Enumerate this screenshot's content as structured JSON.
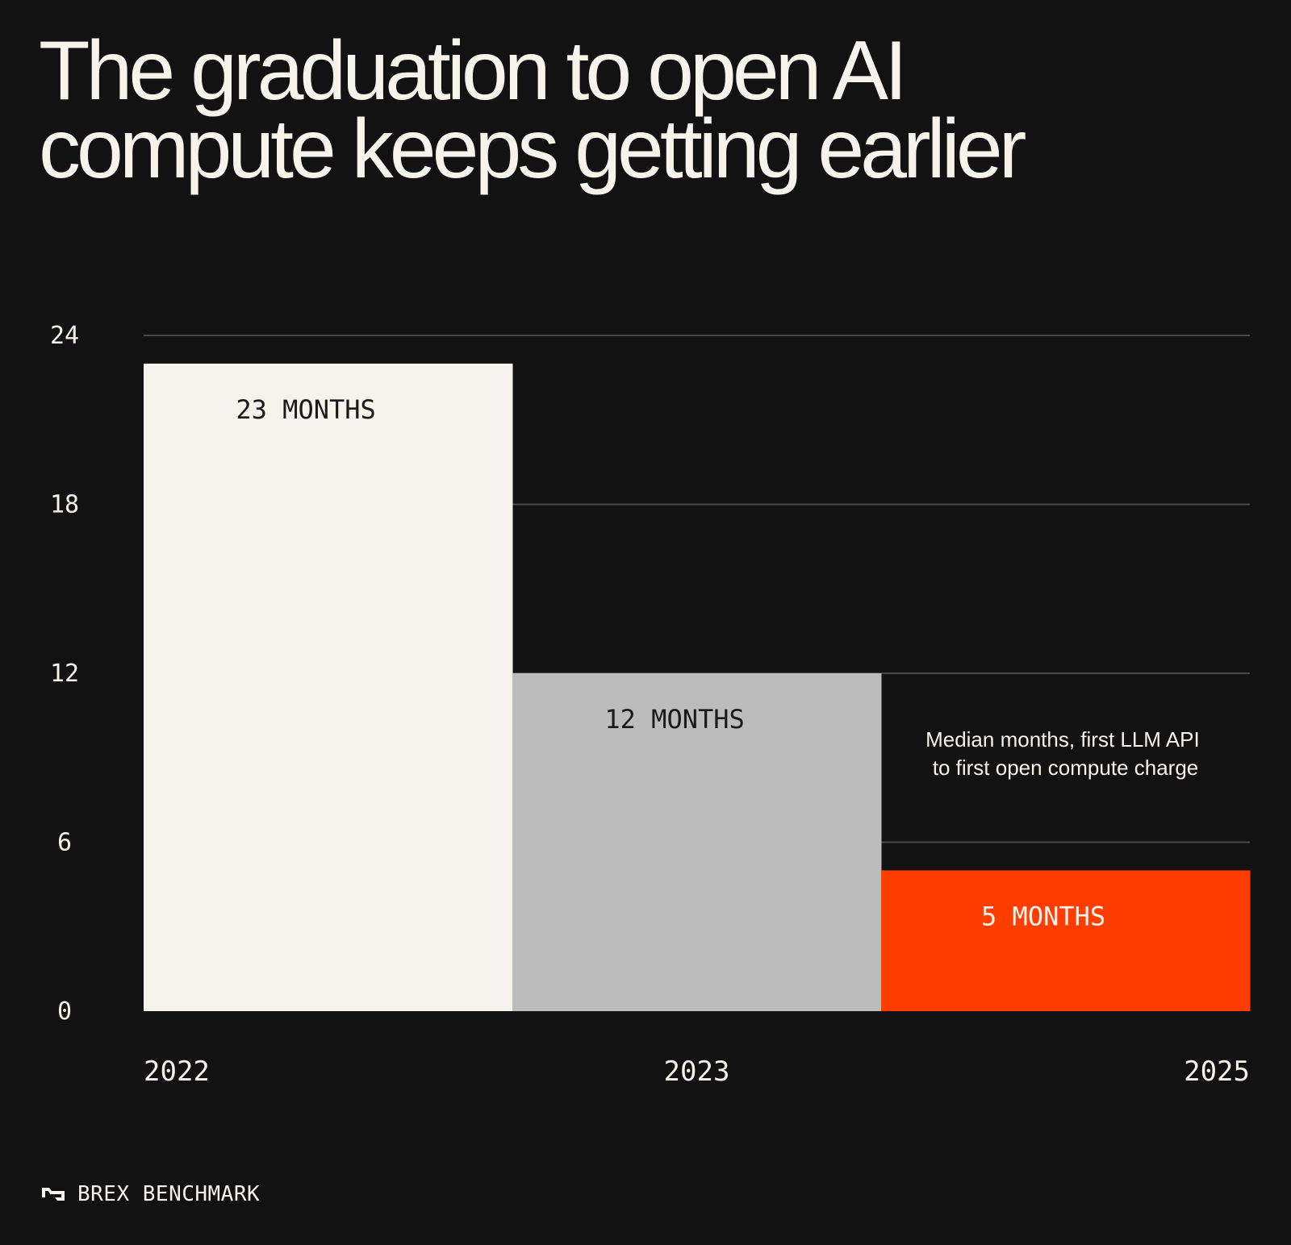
{
  "chart_data": {
    "type": "bar",
    "title_lines": [
      "The graduation to open AI",
      "compute keeps getting earlier"
    ],
    "categories": [
      "2022",
      "2023",
      "2025"
    ],
    "values": [
      23,
      12,
      5
    ],
    "value_labels": [
      "23 MONTHS",
      "12 MONTHS",
      "5 MONTHS"
    ],
    "yticks": [
      0,
      6,
      12,
      18,
      24
    ],
    "ylim": [
      0,
      24
    ],
    "grid": true,
    "annotation": [
      "Median months, first LLM API",
      "to first open compute charge"
    ],
    "colors": {
      "background": "#121212",
      "bars": [
        "#f6f2ec",
        "#bcbcbc",
        "#ff3d00"
      ],
      "bar_labels": [
        "#1a1a1a",
        "#1a1a1a",
        "#f6f2ec"
      ],
      "grid": "#4a4a4a",
      "text": "#f6f2ec"
    }
  },
  "footer": {
    "brand": "BREX BENCHMARK",
    "logo_icon": "brex-logo-icon"
  }
}
